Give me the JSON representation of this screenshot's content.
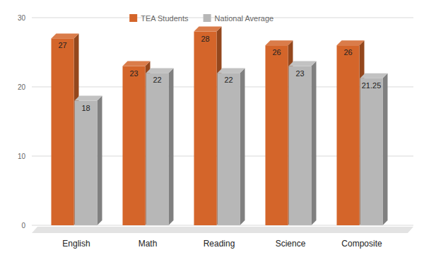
{
  "chart_data": {
    "type": "bar",
    "categories": [
      "English",
      "Math",
      "Reading",
      "Science",
      "Composite"
    ],
    "series": [
      {
        "name": "TEA Students",
        "color": "#d4652a",
        "values": [
          27,
          23,
          28,
          26,
          26
        ]
      },
      {
        "name": "National Average",
        "color": "#b7b7b7",
        "values": [
          18,
          22,
          22,
          23,
          21.25
        ]
      }
    ],
    "ylim": [
      0,
      30
    ],
    "yticks": [
      0,
      10,
      20,
      30
    ],
    "grid": true,
    "legend": "top",
    "data_labels": true
  }
}
